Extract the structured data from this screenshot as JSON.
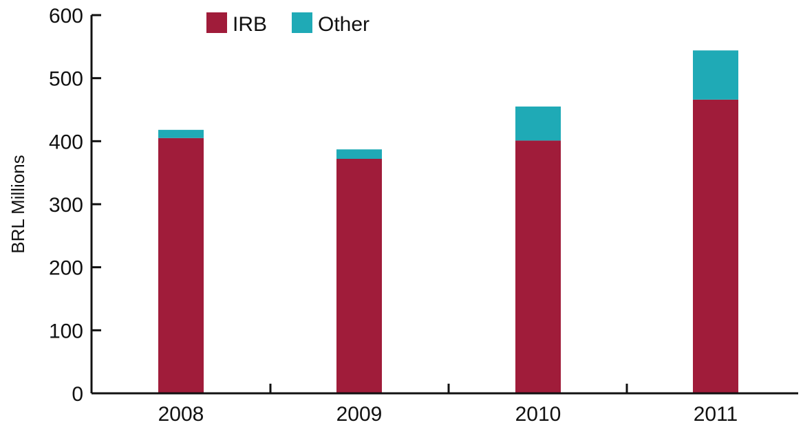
{
  "chart_data": {
    "type": "bar",
    "stacked": true,
    "categories": [
      "2008",
      "2009",
      "2010",
      "2011"
    ],
    "series": [
      {
        "name": "IRB",
        "values": [
          405,
          372,
          401,
          466
        ],
        "color": "#a01c3a"
      },
      {
        "name": "Other",
        "values": [
          13,
          15,
          54,
          78
        ],
        "color": "#1faab6"
      }
    ],
    "ylabel": "BRL Millions",
    "ylim": [
      0,
      600
    ],
    "yticks": [
      "0",
      "100",
      "200",
      "300",
      "400",
      "500",
      "600"
    ],
    "grid": false,
    "legend": "top"
  }
}
